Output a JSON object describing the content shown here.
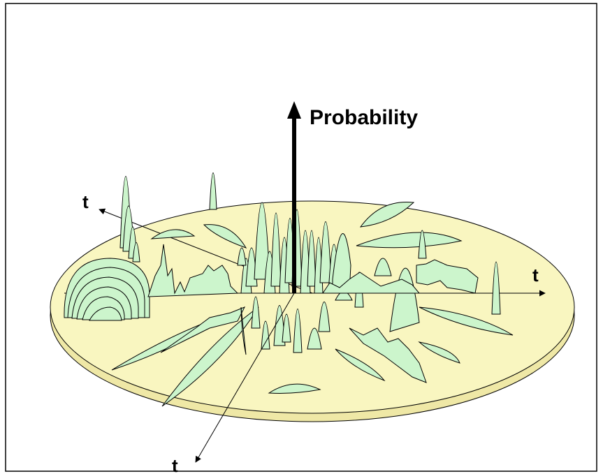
{
  "labels": {
    "probability": "Probability",
    "axis_t_left": "t",
    "axis_t_right": "t",
    "axis_t_bottom": "t"
  },
  "colors": {
    "disk_top": "#f9f6c0",
    "disk_edge": "#efe8a6",
    "surface": "#ccf5cc",
    "outline": "#000000"
  }
}
